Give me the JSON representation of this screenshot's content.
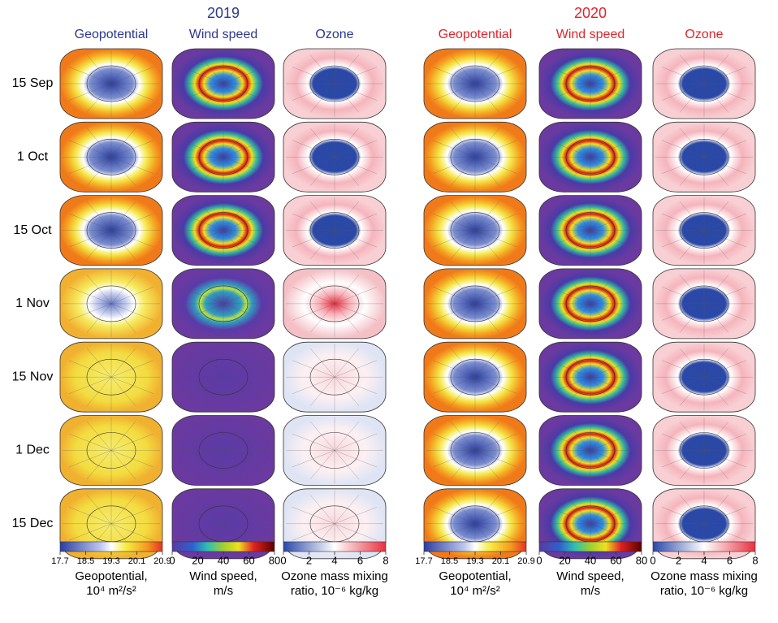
{
  "rows": [
    "15 Sep",
    "1 Oct",
    "15 Oct",
    "1 Nov",
    "15 Nov",
    "1 Dec",
    "15 Dec"
  ],
  "years": [
    {
      "year": "2019",
      "color": "#2b3990",
      "columns": [
        {
          "title": "Geopotential",
          "colorbar": {
            "lim": [
              17.7,
              20.9
            ],
            "ticks": [
              17.7,
              18.5,
              19.3,
              20.1,
              20.9
            ],
            "label": [
              "Geopotential,",
              "10⁴ m²/s²"
            ]
          }
        },
        {
          "title": "Wind speed",
          "colorbar": {
            "lim": [
              0,
              80
            ],
            "ticks": [
              0,
              20,
              40,
              60,
              80
            ],
            "label": [
              "Wind speed,",
              "m/s"
            ]
          }
        },
        {
          "title": "Ozone",
          "colorbar": {
            "lim": [
              0,
              8
            ],
            "ticks": [
              0,
              2,
              4,
              6,
              8
            ],
            "label": [
              "Ozone mass mixing",
              "ratio, 10⁻⁶ kg/kg"
            ]
          }
        }
      ]
    },
    {
      "year": "2020",
      "color": "#e0242a",
      "columns": [
        {
          "title": "Geopotential",
          "colorbar": {
            "lim": [
              17.7,
              20.9
            ],
            "ticks": [
              17.7,
              18.5,
              19.3,
              20.1,
              20.9
            ],
            "label": [
              "Geopotential,",
              "10⁴ m²/s²"
            ]
          }
        },
        {
          "title": "Wind speed",
          "colorbar": {
            "lim": [
              0,
              80
            ],
            "ticks": [
              0,
              20,
              40,
              60,
              80
            ],
            "label": [
              "Wind speed,",
              "m/s"
            ]
          }
        },
        {
          "title": "Ozone",
          "colorbar": {
            "lim": [
              0,
              8
            ],
            "ticks": [
              0,
              2,
              4,
              6,
              8
            ],
            "label": [
              "Ozone mass mixing",
              "ratio, 10⁻⁶ kg/kg"
            ]
          }
        }
      ]
    }
  ]
}
